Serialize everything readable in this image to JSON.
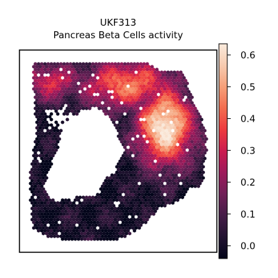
{
  "chart_data": {
    "type": "heatmap",
    "title": "UKF313",
    "subtitle": "Pancreas Beta Cells activity",
    "xlabel": "",
    "ylabel": "",
    "colorbar": {
      "ticks": [
        "0.0",
        "0.1",
        "0.2",
        "0.3",
        "0.4",
        "0.5",
        "0.6"
      ],
      "tick_values": [
        0.0,
        0.1,
        0.2,
        0.3,
        0.4,
        0.5,
        0.6
      ],
      "range": [
        -0.04,
        0.635
      ],
      "colormap": "rocket"
    },
    "grid": false,
    "legend": "colorbar-right"
  }
}
